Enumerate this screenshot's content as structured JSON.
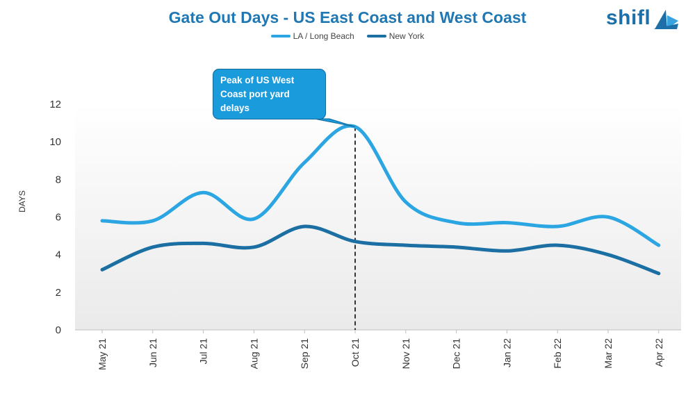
{
  "brand": {
    "logo_text": "shifl"
  },
  "chart_data": {
    "type": "line",
    "title": "Gate Out Days - US East Coast and West Coast",
    "xlabel": "",
    "ylabel": "DAYS",
    "categories": [
      "May 21",
      "Jun 21",
      "Jul 21",
      "Aug 21",
      "Sep 21",
      "Oct 21",
      "Nov 21",
      "Dec 21",
      "Jan 22",
      "Feb 22",
      "Mar 22",
      "Apr 22"
    ],
    "yticks": [
      0,
      2,
      4,
      6,
      8,
      10,
      12
    ],
    "ylim": [
      0,
      12
    ],
    "grid": false,
    "legend_position": "top-center",
    "series": [
      {
        "name": "LA / Long Beach",
        "color": "#2ba6e2",
        "values": [
          5.8,
          5.8,
          7.3,
          5.9,
          8.9,
          10.8,
          6.8,
          5.7,
          5.7,
          5.5,
          6.0,
          4.5
        ]
      },
      {
        "name": "New York",
        "color": "#1b6fa3",
        "values": [
          3.2,
          4.4,
          4.6,
          4.4,
          5.5,
          4.7,
          4.5,
          4.4,
          4.2,
          4.5,
          4.0,
          3.0
        ]
      }
    ],
    "annotation": {
      "text": "Peak of US West Coast port yard delays",
      "category": "Oct 21",
      "value": 10.8
    }
  }
}
